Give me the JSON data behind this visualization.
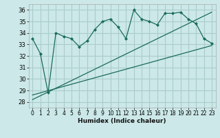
{
  "xlabel": "Humidex (Indice chaleur)",
  "bg_color": "#cce8e8",
  "grid_color": "#aacccc",
  "line_color": "#1a6b5a",
  "xlim": [
    -0.5,
    23.5
  ],
  "ylim": [
    27.5,
    36.5
  ],
  "xticks": [
    0,
    1,
    2,
    3,
    4,
    5,
    6,
    7,
    8,
    9,
    10,
    11,
    12,
    13,
    14,
    15,
    16,
    17,
    18,
    19,
    20,
    21,
    22,
    23
  ],
  "yticks": [
    28,
    29,
    30,
    31,
    32,
    33,
    34,
    35,
    36
  ],
  "main_x": [
    0,
    1,
    2,
    3,
    4,
    5,
    6,
    7,
    8,
    9,
    10,
    11,
    12,
    13,
    14,
    15,
    16,
    17,
    18,
    19,
    20,
    21,
    22,
    23
  ],
  "main_y": [
    33.5,
    32.2,
    28.8,
    34.0,
    33.7,
    33.5,
    32.8,
    33.3,
    34.3,
    35.0,
    35.2,
    34.5,
    33.5,
    36.0,
    35.2,
    35.0,
    34.7,
    35.7,
    35.7,
    35.8,
    35.2,
    34.8,
    33.5,
    33.1
  ],
  "line1_x": [
    0,
    23
  ],
  "line1_y": [
    28.6,
    32.9
  ],
  "line2_x": [
    0,
    23
  ],
  "line2_y": [
    28.2,
    35.8
  ]
}
